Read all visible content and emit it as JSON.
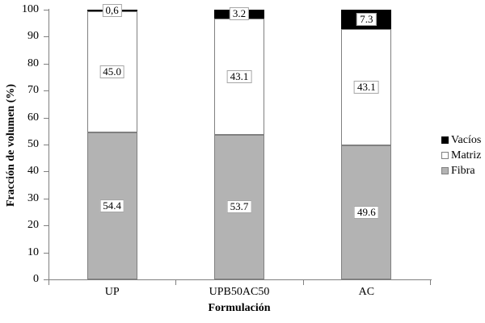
{
  "chart_data": {
    "type": "bar",
    "stacked": true,
    "title": "",
    "xlabel": "Formulación",
    "ylabel": "Fracción de volumen (%)",
    "ylim": [
      0,
      100
    ],
    "yticks": [
      0,
      10,
      20,
      30,
      40,
      50,
      60,
      70,
      80,
      90,
      100
    ],
    "grid": false,
    "legend_position": "right",
    "legend_order_top_to_bottom": [
      "Vacíos",
      "Matriz",
      "Fibra"
    ],
    "categories": [
      "UP",
      "UPB50AC50",
      "AC"
    ],
    "series": [
      {
        "name": "Fibra",
        "color": "#b3b3b3",
        "border": "#808080",
        "values": [
          54.4,
          53.7,
          49.6
        ],
        "labels": [
          "54.4",
          "53.7",
          "49.6"
        ]
      },
      {
        "name": "Matriz",
        "color": "#ffffff",
        "border": "#808080",
        "values": [
          45.0,
          43.1,
          43.1
        ],
        "labels": [
          "45.0",
          "43.1",
          "43.1"
        ]
      },
      {
        "name": "Vacíos",
        "color": "#000000",
        "border": "#000000",
        "values": [
          0.6,
          3.2,
          7.3
        ],
        "labels": [
          "0,6",
          "3.2",
          "7.3"
        ]
      }
    ],
    "axis_color": "#808080",
    "label_box": {
      "bg": "#ffffff",
      "border": "#a6a6a6"
    }
  }
}
